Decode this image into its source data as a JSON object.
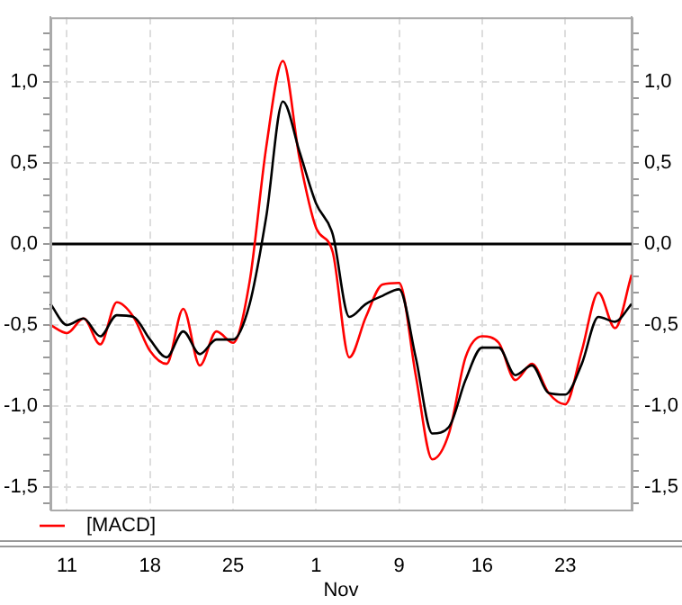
{
  "chart_data": {
    "type": "line",
    "categories": [
      null,
      "11",
      null,
      null,
      null,
      null,
      "18",
      null,
      null,
      null,
      null,
      "25",
      null,
      null,
      null,
      null,
      "1",
      null,
      null,
      null,
      null,
      "9",
      null,
      null,
      null,
      null,
      "16",
      null,
      null,
      null,
      null,
      "23",
      null,
      null,
      null,
      null
    ],
    "series": [
      {
        "name": "[MACD]",
        "color": "#ff0000",
        "values": [
          -0.5,
          -0.55,
          -0.46,
          -0.62,
          -0.36,
          -0.45,
          -0.66,
          -0.74,
          -0.4,
          -0.75,
          -0.54,
          -0.61,
          -0.23,
          0.6,
          1.13,
          0.53,
          0.1,
          -0.05,
          -0.7,
          -0.45,
          -0.25,
          -0.24,
          -0.81,
          -1.33,
          -1.17,
          -0.7,
          -0.57,
          -0.61,
          -0.84,
          -0.74,
          -0.92,
          -0.99,
          -0.66,
          -0.3,
          -0.52,
          -0.19
        ]
      },
      {
        "color": "#000000",
        "values": [
          -0.37,
          -0.5,
          -0.46,
          -0.57,
          -0.44,
          -0.45,
          -0.59,
          -0.7,
          -0.54,
          -0.68,
          -0.59,
          -0.59,
          -0.37,
          0.17,
          0.88,
          0.57,
          0.25,
          0.06,
          -0.45,
          -0.37,
          -0.32,
          -0.28,
          -0.7,
          -1.17,
          -1.13,
          -0.84,
          -0.64,
          -0.64,
          -0.81,
          -0.75,
          -0.92,
          -0.93,
          -0.74,
          -0.45,
          -0.48,
          -0.37
        ]
      }
    ],
    "ylim": [
      -1.64,
      1.4
    ],
    "yticks": [
      {
        "value": -1.6,
        "label": null
      },
      {
        "value": -1.5,
        "label": "-1,5"
      },
      {
        "value": -1.4,
        "label": null
      },
      {
        "value": -1.3,
        "label": null
      },
      {
        "value": -1.2,
        "label": null
      },
      {
        "value": -1.1,
        "label": null
      },
      {
        "value": -1.0,
        "label": "-1,0"
      },
      {
        "value": -0.9,
        "label": null
      },
      {
        "value": -0.8,
        "label": null
      },
      {
        "value": -0.7,
        "label": null
      },
      {
        "value": -0.6,
        "label": null
      },
      {
        "value": -0.5,
        "label": "-0,5"
      },
      {
        "value": -0.4,
        "label": null
      },
      {
        "value": -0.3,
        "label": null
      },
      {
        "value": -0.2,
        "label": null
      },
      {
        "value": -0.1,
        "label": null
      },
      {
        "value": 0,
        "label": "0,0"
      },
      {
        "value": 0.1,
        "label": null
      },
      {
        "value": 0.2,
        "label": null
      },
      {
        "value": 0.3,
        "label": null
      },
      {
        "value": 0.4,
        "label": null
      },
      {
        "value": 0.5,
        "label": "0,5"
      },
      {
        "value": 0.6,
        "label": null
      },
      {
        "value": 0.7,
        "label": null
      },
      {
        "value": 0.8,
        "label": null
      },
      {
        "value": 0.9,
        "label": null
      },
      {
        "value": 1.0,
        "label": "1,0"
      },
      {
        "value": 1.1,
        "label": null
      },
      {
        "value": 1.2,
        "label": null
      },
      {
        "value": 1.3,
        "label": null
      }
    ],
    "y2lim": [
      -1.64,
      1.4
    ],
    "y2ticks": [
      {
        "value": -1.6,
        "label": null
      },
      {
        "value": -1.5,
        "label": "-1,5"
      },
      {
        "value": -1.4,
        "label": null
      },
      {
        "value": -1.3,
        "label": null
      },
      {
        "value": -1.2,
        "label": null
      },
      {
        "value": -1.1,
        "label": null
      },
      {
        "value": -1.0,
        "label": "-1,0"
      },
      {
        "value": -0.9,
        "label": null
      },
      {
        "value": -0.8,
        "label": null
      },
      {
        "value": -0.7,
        "label": null
      },
      {
        "value": -0.6,
        "label": null
      },
      {
        "value": -0.5,
        "label": "-0,5"
      },
      {
        "value": -0.4,
        "label": null
      },
      {
        "value": -0.3,
        "label": null
      },
      {
        "value": -0.2,
        "label": null
      },
      {
        "value": -0.1,
        "label": null
      },
      {
        "value": 0,
        "label": "0,0"
      },
      {
        "value": 0.1,
        "label": null
      },
      {
        "value": 0.2,
        "label": null
      },
      {
        "value": 0.3,
        "label": null
      },
      {
        "value": 0.4,
        "label": null
      },
      {
        "value": 0.5,
        "label": "0,5"
      },
      {
        "value": 0.6,
        "label": null
      },
      {
        "value": 0.7,
        "label": null
      },
      {
        "value": 0.8,
        "label": null
      },
      {
        "value": 0.9,
        "label": null
      },
      {
        "value": 1.0,
        "label": "1,0"
      },
      {
        "value": 1.1,
        "label": null
      },
      {
        "value": 1.2,
        "label": null
      },
      {
        "value": 1.3,
        "label": null
      }
    ],
    "ref_lines": [
      {
        "axis": "y",
        "value": 0,
        "color": "#000000"
      }
    ],
    "annotations": [
      "Nov"
    ],
    "grid": true,
    "legend": "bottom left"
  }
}
